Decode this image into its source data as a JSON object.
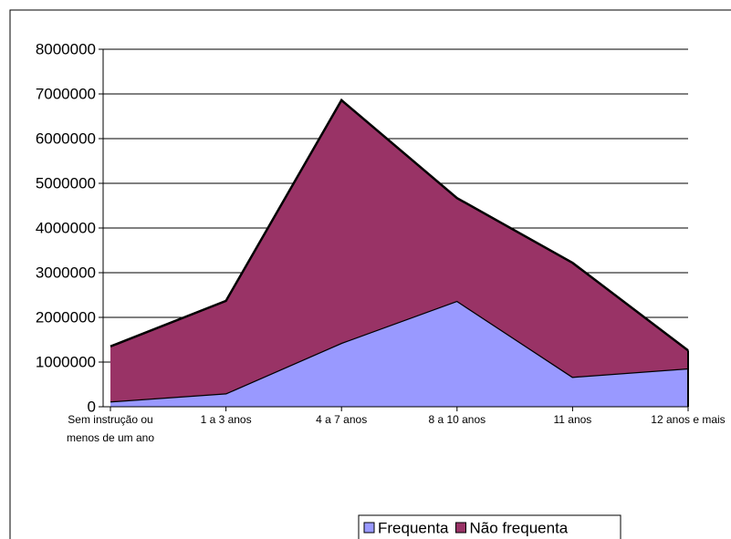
{
  "chart_data": {
    "type": "stacked_area",
    "categories": [
      "Sem instrução ou menos de um ano",
      "1 a 3 anos",
      "4 a 7 anos",
      "8 a 10 anos",
      "11 anos",
      "12 anos e mais"
    ],
    "series": [
      {
        "name": "Frequenta",
        "color": "#9999ff",
        "values": [
          120000,
          300000,
          1430000,
          2370000,
          670000,
          860000
        ]
      },
      {
        "name": "Não frequenta",
        "color": "#993366",
        "values": [
          1230000,
          2070000,
          5430000,
          2300000,
          2550000,
          400000
        ]
      }
    ],
    "ylim": [
      0,
      8000000
    ],
    "yticks": [
      0,
      1000000,
      2000000,
      3000000,
      4000000,
      5000000,
      6000000,
      7000000,
      8000000
    ],
    "grid": true,
    "legend": "bottom"
  }
}
